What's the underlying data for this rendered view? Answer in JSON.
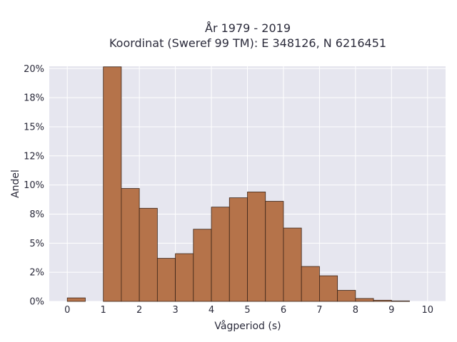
{
  "chart_data": {
    "type": "bar",
    "title": [
      "År 1979 - 2019",
      "Koordinat (Sweref 99 TM): E 348126, N 6216451"
    ],
    "xlabel": "Vågperiod (s)",
    "ylabel": "Andel",
    "xlim": [
      -0.5,
      10.5
    ],
    "ylim": [
      0,
      0.202
    ],
    "xticks": [
      0,
      1,
      2,
      3,
      4,
      5,
      6,
      7,
      8,
      9,
      10
    ],
    "xtick_labels": [
      "0",
      "1",
      "2",
      "3",
      "4",
      "5",
      "6",
      "7",
      "8",
      "9",
      "10"
    ],
    "yticks": [
      0,
      0.025,
      0.05,
      0.075,
      0.1,
      0.125,
      0.15,
      0.175,
      0.2
    ],
    "ytick_labels": [
      "0%",
      "2%",
      "5%",
      "8%",
      "10%",
      "12%",
      "15%",
      "18%",
      "20%"
    ],
    "bin_width": 0.5,
    "bins": [
      {
        "x0": 0.0,
        "value": 0.003
      },
      {
        "x0": 0.5,
        "value": 0.0
      },
      {
        "x0": 1.0,
        "value": 0.2015
      },
      {
        "x0": 1.5,
        "value": 0.097
      },
      {
        "x0": 2.0,
        "value": 0.08
      },
      {
        "x0": 2.5,
        "value": 0.037
      },
      {
        "x0": 3.0,
        "value": 0.041
      },
      {
        "x0": 3.5,
        "value": 0.062
      },
      {
        "x0": 4.0,
        "value": 0.081
      },
      {
        "x0": 4.5,
        "value": 0.089
      },
      {
        "x0": 5.0,
        "value": 0.094
      },
      {
        "x0": 5.5,
        "value": 0.086
      },
      {
        "x0": 6.0,
        "value": 0.063
      },
      {
        "x0": 6.5,
        "value": 0.03
      },
      {
        "x0": 7.0,
        "value": 0.022
      },
      {
        "x0": 7.5,
        "value": 0.0095
      },
      {
        "x0": 8.0,
        "value": 0.0025
      },
      {
        "x0": 8.5,
        "value": 0.001
      },
      {
        "x0": 9.0,
        "value": 0.0004
      }
    ],
    "grid": true,
    "colors": {
      "bar": "#b5734a",
      "plot_background": "#e6e6ef",
      "grid": "#ffffff"
    }
  }
}
